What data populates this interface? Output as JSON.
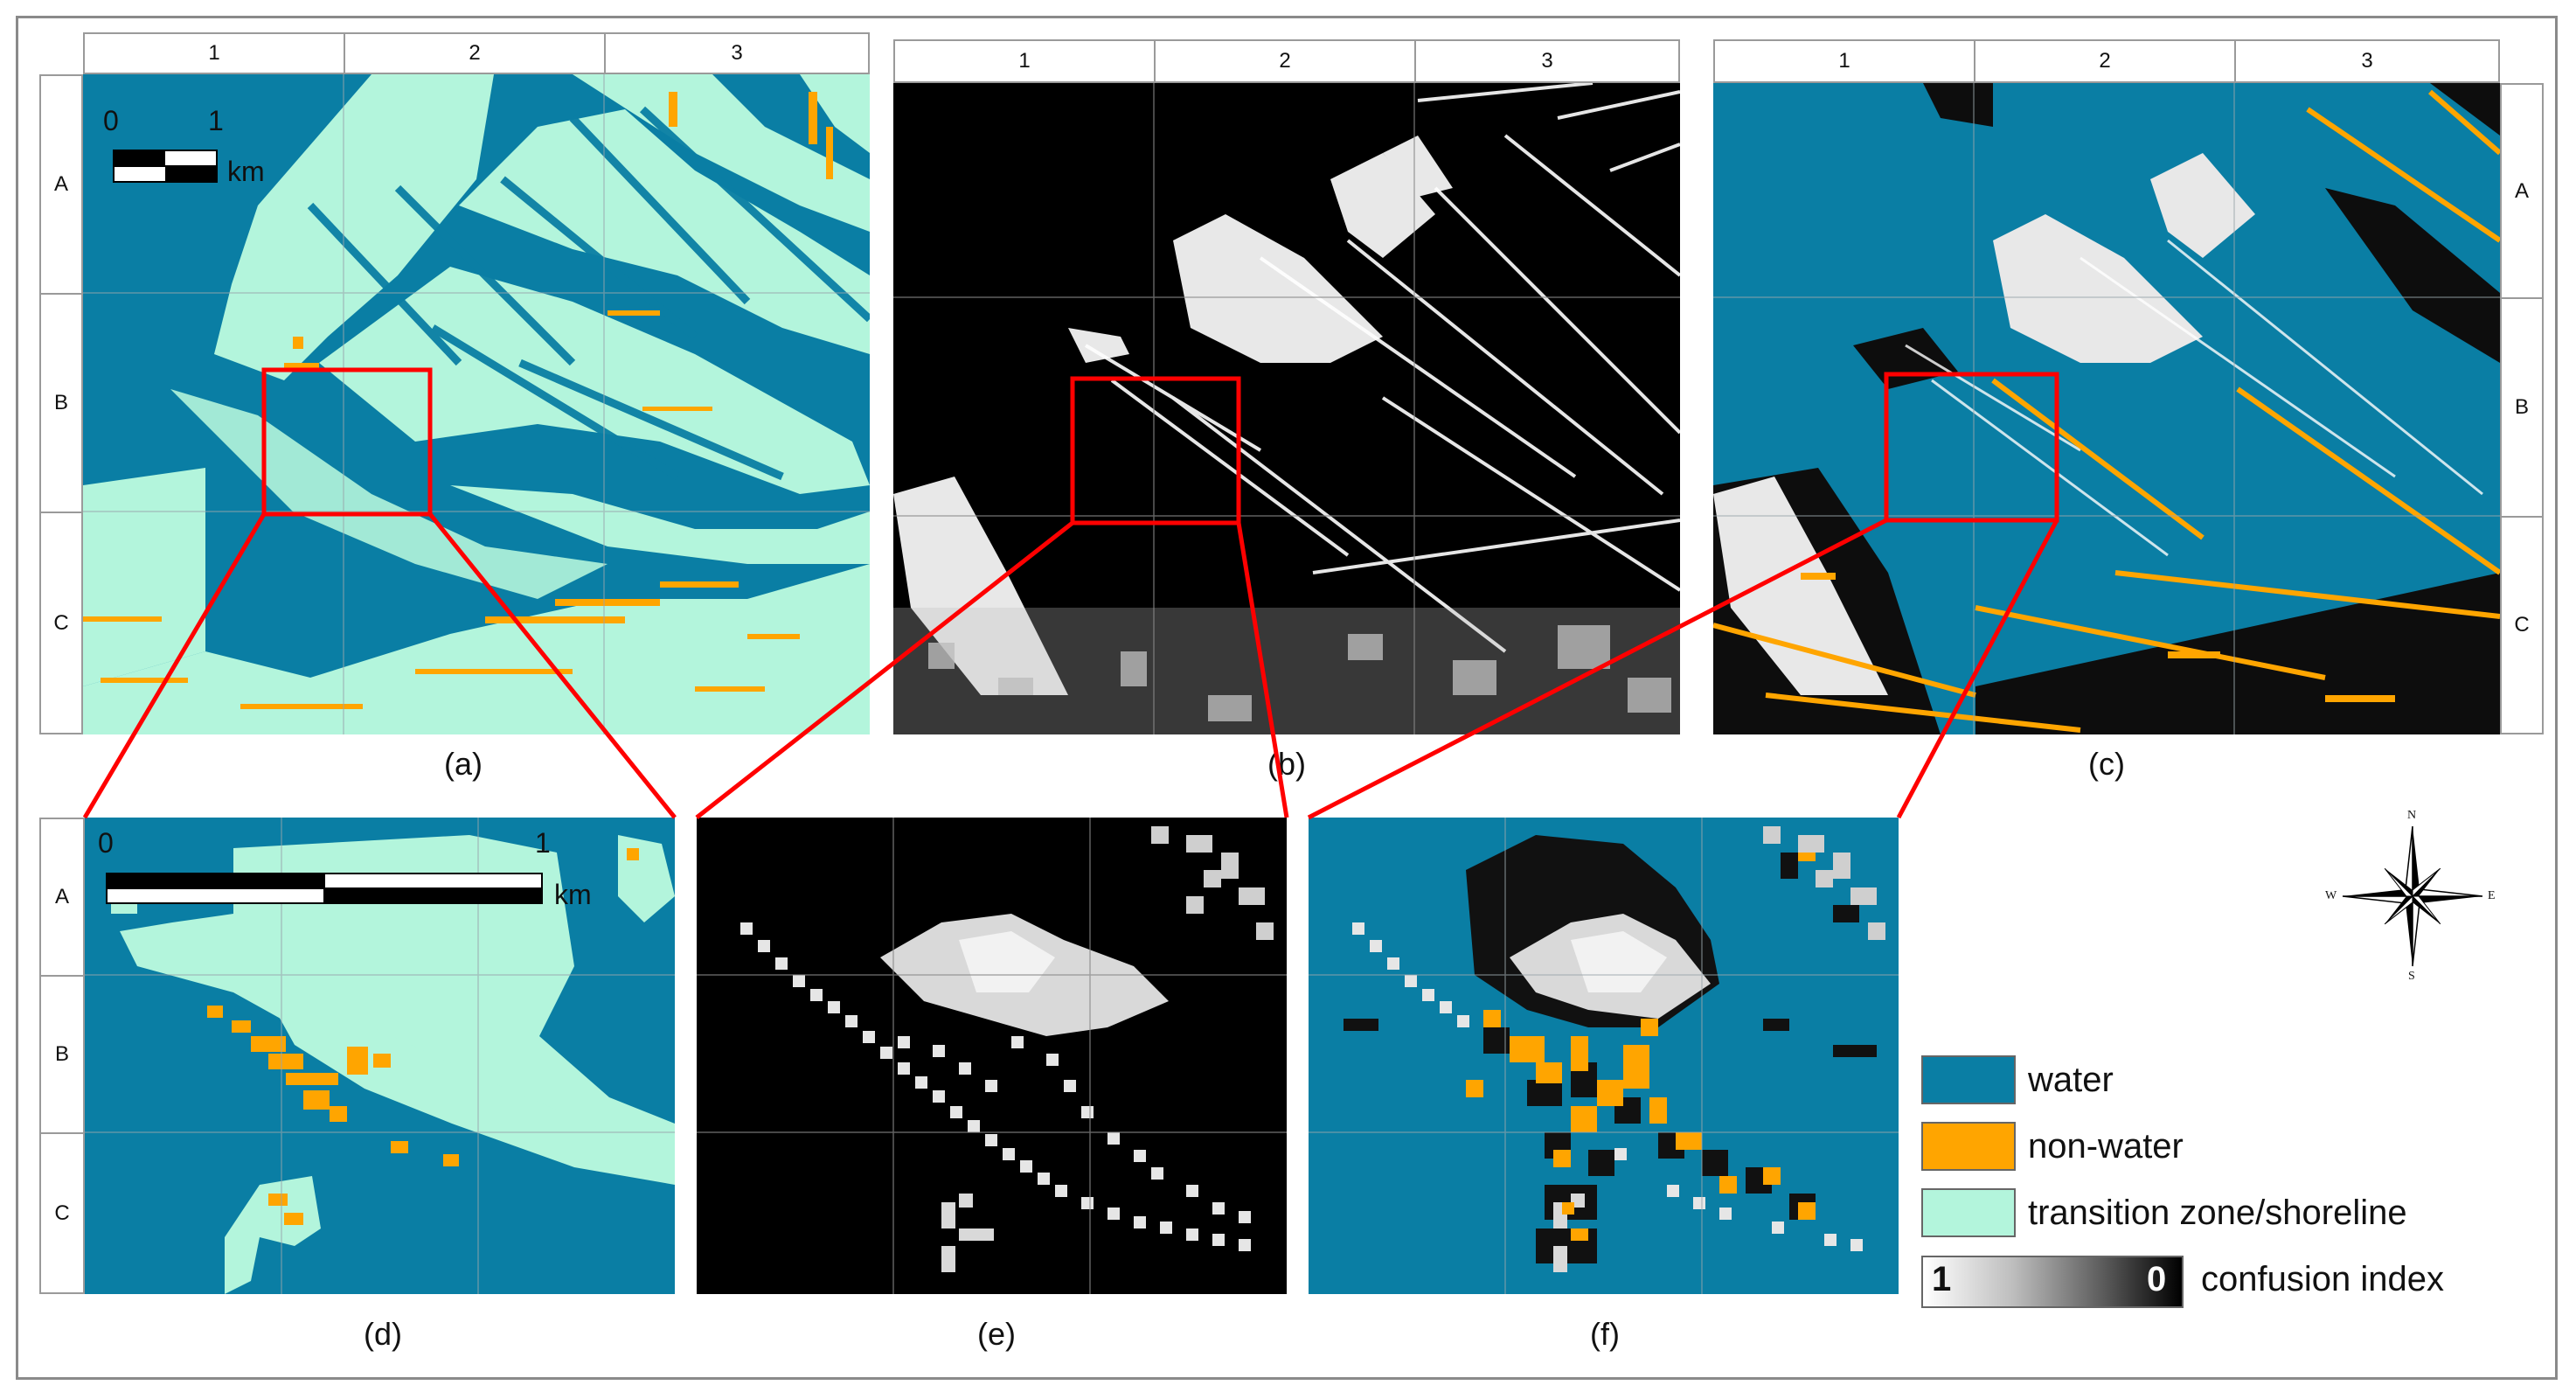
{
  "ruler_columns": [
    "1",
    "2",
    "3"
  ],
  "ruler_rows": [
    "A",
    "B",
    "C"
  ],
  "panel_labels": {
    "a": "(a)",
    "b": "(b)",
    "c": "(c)",
    "d": "(d)",
    "e": "(e)",
    "f": "(f)"
  },
  "scalebar_top": {
    "zero": "0",
    "one": "1",
    "unit": "km"
  },
  "scalebar_zoom": {
    "zero": "0",
    "one": "1",
    "unit": "km"
  },
  "compass": {
    "n": "N",
    "s": "S",
    "e": "E",
    "w": "W"
  },
  "legend": {
    "water": "water",
    "non_water": "non-water",
    "transition": "transition zone/shoreline",
    "ramp_low": "1",
    "ramp_high": "0",
    "ramp_label": "confusion index"
  },
  "colors": {
    "water": "#0a7ea4",
    "non_water": "#ffa500",
    "transition": "#b3f5dc",
    "highlight_box": "#ff0000"
  }
}
